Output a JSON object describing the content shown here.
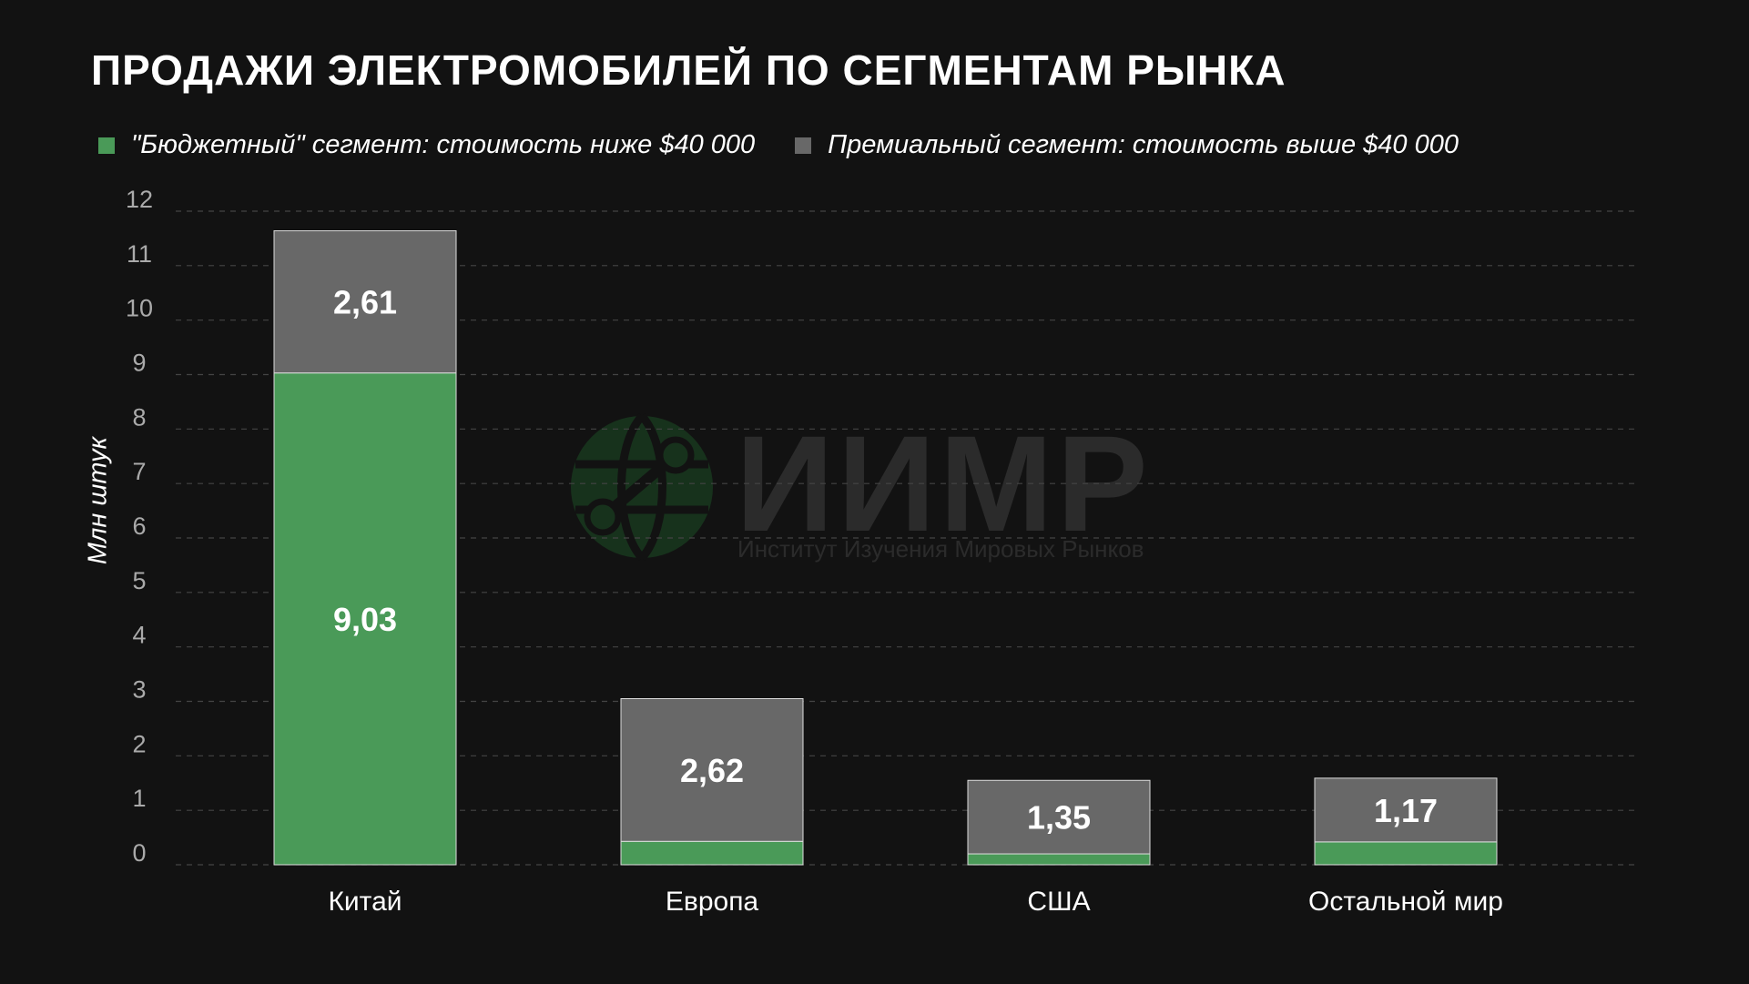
{
  "title": "Продажи электромобилей по сегментам рынка",
  "watermark": {
    "name": "ИИМР",
    "subtitle": "Институт Изучения Мировых Рынков"
  },
  "colors": {
    "background": "#121212",
    "budget": "#4a9a58",
    "premium": "#686868",
    "grid": "#444444",
    "tick": "#aaaaaa"
  },
  "chart_data": {
    "type": "bar",
    "stacked": true,
    "title": "Продажи электромобилей по сегментам рынка",
    "ylabel": "Млн штук",
    "xlabel": "",
    "ylim": [
      0,
      12
    ],
    "yticks": [
      0,
      1,
      2,
      3,
      4,
      5,
      6,
      7,
      8,
      9,
      10,
      11,
      12
    ],
    "grid": true,
    "legend_position": "top-left",
    "categories": [
      "Китай",
      "Европа",
      "США",
      "Остальной мир"
    ],
    "series": [
      {
        "name": "\"Бюджетный\" сегмент: стоимость ниже $40 000",
        "color": "#4a9a58",
        "values": [
          9.03,
          0.43,
          0.2,
          0.42
        ],
        "labels": [
          "9,03",
          "",
          "",
          ""
        ]
      },
      {
        "name": "Премиальный сегмент: стоимость выше $40 000",
        "color": "#686868",
        "values": [
          2.61,
          2.62,
          1.35,
          1.17
        ],
        "labels": [
          "2,61",
          "2,62",
          "1,35",
          "1,17"
        ]
      }
    ]
  }
}
